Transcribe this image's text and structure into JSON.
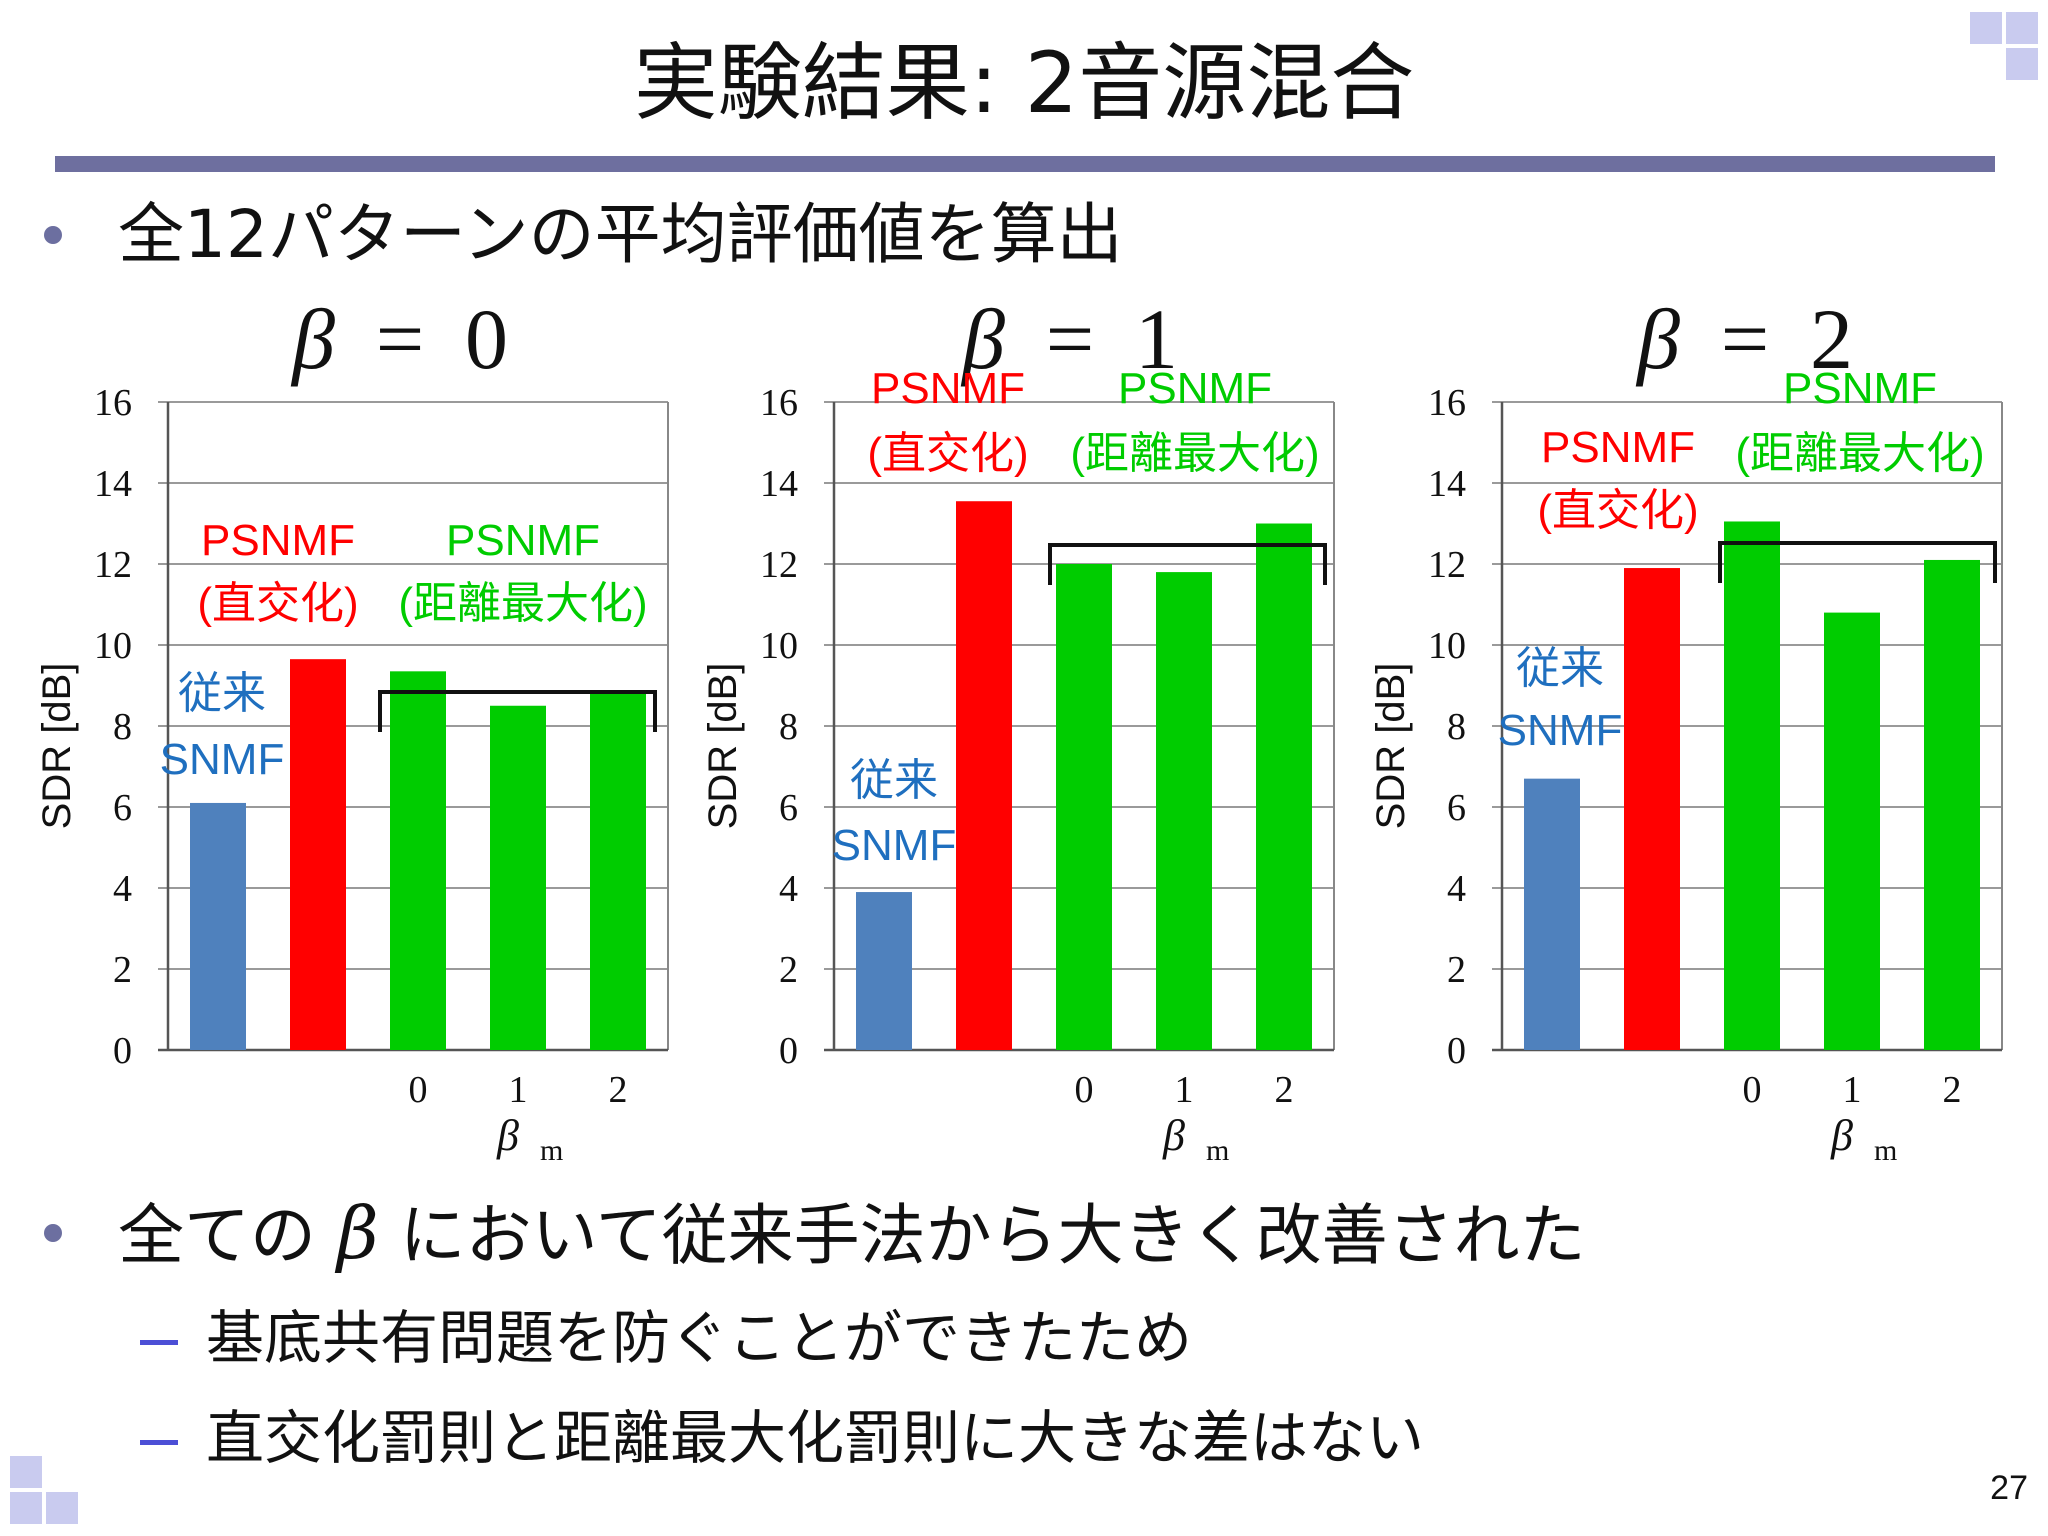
{
  "title": "実験結果: 2音源混合",
  "bullet1": "全12パターンの平均評価値を算出",
  "bullet2": {
    "prefix": "全ての",
    "math": "β",
    "suffix": "において従来手法から大きく改善された"
  },
  "sub_bullets": [
    "基底共有問題を防ぐことができたため",
    "直交化罰則と距離最大化罰則に大きな差はない"
  ],
  "page_number": "27",
  "colors": {
    "snmf": "#4f81bd",
    "psnmf_orth": "#ff0000",
    "psnmf_dist": "#00cc00",
    "snmf_label": "#1f6fbf",
    "rule": "#6e6f9f",
    "corner_squares": "#c9cbef"
  },
  "chart_data": [
    {
      "type": "bar",
      "panel_title": {
        "symbol": "β",
        "eq": "=",
        "value": "0"
      },
      "ylabel": "SDR [dB]",
      "ylim": [
        0,
        16
      ],
      "yticks": [
        "0",
        "2",
        "4",
        "6",
        "8",
        "10",
        "12",
        "14",
        "16"
      ],
      "grid": true,
      "xlabel": {
        "symbol": "β",
        "sub": "m"
      },
      "categories": [
        "",
        "",
        "0",
        "1",
        "2"
      ],
      "values": [
        6.1,
        9.65,
        9.35,
        8.5,
        8.85
      ],
      "bar_colors": [
        "snmf",
        "psnmf_orth",
        "psnmf_dist",
        "psnmf_dist",
        "psnmf_dist"
      ],
      "annotations": {
        "snmf": [
          "従来",
          "SNMF"
        ],
        "orth": [
          "PSNMF",
          "(直交化)"
        ],
        "dist": [
          "PSNMF",
          "(距離最大化)"
        ]
      }
    },
    {
      "type": "bar",
      "panel_title": {
        "symbol": "β",
        "eq": "=",
        "value": "1"
      },
      "ylabel": "SDR [dB]",
      "ylim": [
        0,
        16
      ],
      "yticks": [
        "0",
        "2",
        "4",
        "6",
        "8",
        "10",
        "12",
        "14",
        "16"
      ],
      "grid": true,
      "xlabel": {
        "symbol": "β",
        "sub": "m"
      },
      "categories": [
        "",
        "",
        "0",
        "1",
        "2"
      ],
      "values": [
        3.9,
        13.55,
        12.0,
        11.8,
        13.0
      ],
      "bar_colors": [
        "snmf",
        "psnmf_orth",
        "psnmf_dist",
        "psnmf_dist",
        "psnmf_dist"
      ],
      "annotations": {
        "snmf": [
          "従来",
          "SNMF"
        ],
        "orth": [
          "PSNMF",
          "(直交化)"
        ],
        "dist": [
          "PSNMF",
          "(距離最大化)"
        ]
      }
    },
    {
      "type": "bar",
      "panel_title": {
        "symbol": "β",
        "eq": "=",
        "value": "2"
      },
      "ylabel": "SDR [dB]",
      "ylim": [
        0,
        16
      ],
      "yticks": [
        "0",
        "2",
        "4",
        "6",
        "8",
        "10",
        "12",
        "14",
        "16"
      ],
      "grid": true,
      "xlabel": {
        "symbol": "β",
        "sub": "m"
      },
      "categories": [
        "",
        "",
        "0",
        "1",
        "2"
      ],
      "values": [
        6.7,
        11.9,
        13.05,
        10.8,
        12.1
      ],
      "bar_colors": [
        "snmf",
        "psnmf_orth",
        "psnmf_dist",
        "psnmf_dist",
        "psnmf_dist"
      ],
      "annotations": {
        "snmf": [
          "従来",
          "SNMF"
        ],
        "orth": [
          "PSNMF",
          "(直交化)"
        ],
        "dist": [
          "PSNMF",
          "(距離最大化)"
        ]
      }
    }
  ]
}
